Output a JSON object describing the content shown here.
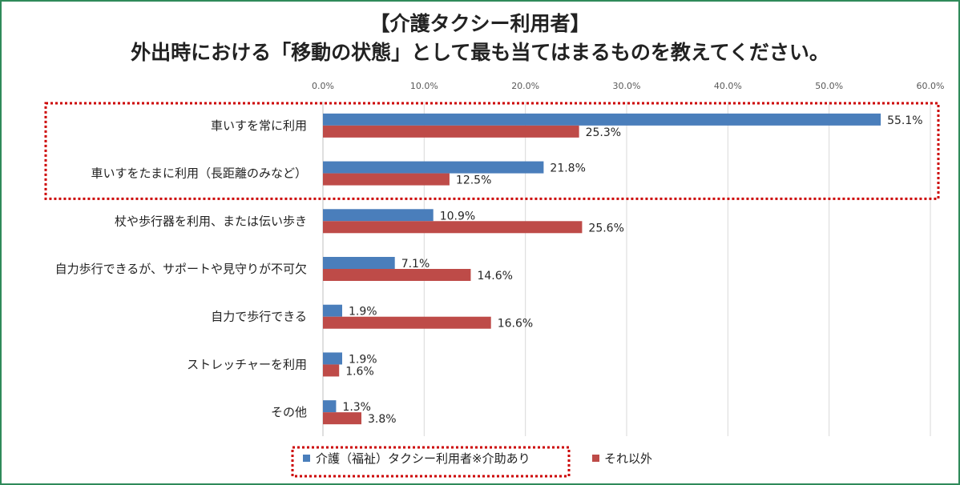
{
  "chart_data": {
    "type": "bar",
    "orientation": "horizontal",
    "title": "【介護タクシー利用者】",
    "subtitle": "外出時における「移動の状態」として最も当てはまるものを教えてください。",
    "categories": [
      "車いすを常に利用",
      "車いすをたまに利用（長距離のみなど）",
      "杖や歩行器を利用、または伝い歩き",
      "自力歩行できるが、サポートや見守りが不可欠",
      "自力で歩行できる",
      "ストレッチャーを利用",
      "その他"
    ],
    "series": [
      {
        "name": "介護（福祉）タクシー利用者※介助あり",
        "color": "#4a7ebb",
        "values": [
          55.1,
          21.8,
          10.9,
          7.1,
          1.9,
          1.9,
          1.3
        ],
        "labels": [
          "55.1%",
          "21.8%",
          "10.9%",
          "7.1%",
          "1.9%",
          "1.9%",
          "1.3%"
        ]
      },
      {
        "name": "それ以外",
        "color": "#be4b48",
        "values": [
          25.3,
          12.5,
          25.6,
          14.6,
          16.6,
          1.6,
          3.8
        ],
        "labels": [
          "25.3%",
          "12.5%",
          "25.6%",
          "14.6%",
          "16.6%",
          "1.6%",
          "3.8%"
        ]
      }
    ],
    "xlim": [
      0,
      60
    ],
    "x_ticks": [
      "0.0%",
      "10.0%",
      "20.0%",
      "30.0%",
      "40.0%",
      "50.0%",
      "60.0%"
    ],
    "x_axis_position": "top",
    "grid": true,
    "legend_position": "bottom",
    "highlighted_categories": [
      "車いすを常に利用",
      "車いすをたまに利用（長距離のみなど）"
    ],
    "highlighted_legend_entry": "介護（福祉）タクシー利用者※介助あり",
    "highlight_color": "#cc0000"
  }
}
